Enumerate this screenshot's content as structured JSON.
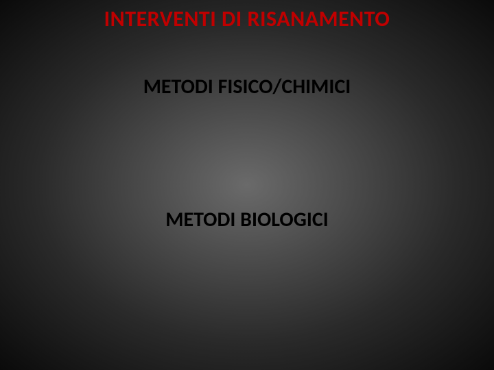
{
  "slide": {
    "title": {
      "text": "INTERVENTI DI RISANAMENTO",
      "color": "#c00000",
      "fontsize": 32
    },
    "subtitle1": {
      "text": "METODI FISICO/CHIMICI",
      "color": "#000000",
      "fontsize": 30
    },
    "subtitle2": {
      "text": "METODI BIOLOGICI",
      "color": "#000000",
      "fontsize": 30
    },
    "background": {
      "center_color": "#6a6a6a",
      "edge_color": "#0a0a0a"
    }
  }
}
